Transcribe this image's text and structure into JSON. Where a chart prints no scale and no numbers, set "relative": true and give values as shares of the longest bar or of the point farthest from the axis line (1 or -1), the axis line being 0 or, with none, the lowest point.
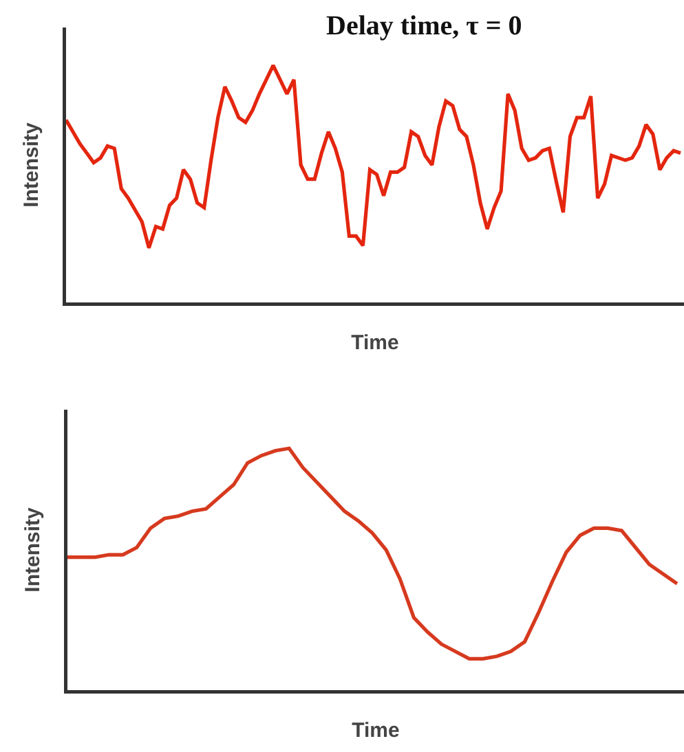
{
  "chart_data": [
    {
      "type": "line",
      "title": "Delay time, τ = 0",
      "xlabel": "Time",
      "ylabel": "Intensity",
      "relative": true,
      "color": "#e4260f",
      "categories": [
        null,
        null,
        null,
        null,
        null,
        null,
        null,
        null,
        null,
        null,
        null,
        null,
        null,
        null,
        null,
        null,
        null,
        null,
        null,
        null,
        null,
        null,
        null,
        null,
        null,
        null,
        null,
        null,
        null,
        null,
        null,
        null,
        null,
        null,
        null,
        null,
        null,
        null,
        null,
        null,
        null,
        null,
        null,
        null,
        null,
        null,
        null,
        null,
        null,
        null,
        null,
        null,
        null,
        null,
        null,
        null,
        null,
        null,
        null,
        null,
        null,
        null,
        null,
        null,
        null,
        null,
        null,
        null,
        null,
        null,
        null,
        null,
        null,
        null,
        null,
        null,
        null,
        null,
        null,
        null,
        null,
        null,
        null,
        null,
        null,
        null,
        null,
        null,
        null,
        null
      ],
      "values": [
        0.77,
        0.72,
        0.67,
        0.63,
        0.59,
        0.61,
        0.66,
        0.65,
        0.48,
        0.44,
        0.39,
        0.34,
        0.23,
        0.32,
        0.31,
        0.41,
        0.44,
        0.56,
        0.52,
        0.42,
        0.4,
        0.6,
        0.78,
        0.91,
        0.85,
        0.78,
        0.76,
        0.81,
        0.88,
        0.94,
        1.0,
        0.94,
        0.88,
        0.94,
        0.58,
        0.52,
        0.52,
        0.63,
        0.72,
        0.65,
        0.55,
        0.28,
        0.28,
        0.24,
        0.56,
        0.54,
        0.45,
        0.55,
        0.55,
        0.57,
        0.72,
        0.7,
        0.62,
        0.58,
        0.74,
        0.85,
        0.83,
        0.73,
        0.7,
        0.58,
        0.42,
        0.31,
        0.4,
        0.47,
        0.88,
        0.81,
        0.65,
        0.6,
        0.61,
        0.64,
        0.65,
        0.51,
        0.38,
        0.7,
        0.78,
        0.78,
        0.87,
        0.44,
        0.5,
        0.62,
        0.61,
        0.6,
        0.61,
        0.66,
        0.75,
        0.71,
        0.56,
        0.61,
        0.64,
        0.63
      ]
    },
    {
      "type": "line",
      "xlabel": "Time",
      "ylabel": "Intensity",
      "relative": true,
      "color": "#d63a1e",
      "categories": [
        null,
        null,
        null,
        null,
        null,
        null,
        null,
        null,
        null,
        null,
        null,
        null,
        null,
        null,
        null,
        null,
        null,
        null,
        null,
        null,
        null,
        null,
        null,
        null,
        null,
        null,
        null,
        null,
        null,
        null,
        null,
        null,
        null,
        null,
        null,
        null,
        null,
        null,
        null,
        null,
        null,
        null,
        null,
        null,
        null
      ],
      "values": [
        0.55,
        0.55,
        0.55,
        0.56,
        0.56,
        0.59,
        0.67,
        0.71,
        0.72,
        0.74,
        0.75,
        0.8,
        0.85,
        0.94,
        0.97,
        0.99,
        1.0,
        0.92,
        0.86,
        0.8,
        0.74,
        0.7,
        0.65,
        0.58,
        0.46,
        0.3,
        0.24,
        0.19,
        0.16,
        0.13,
        0.13,
        0.14,
        0.16,
        0.2,
        0.32,
        0.45,
        0.57,
        0.64,
        0.67,
        0.67,
        0.66,
        0.59,
        0.52,
        0.48,
        0.44
      ]
    }
  ]
}
